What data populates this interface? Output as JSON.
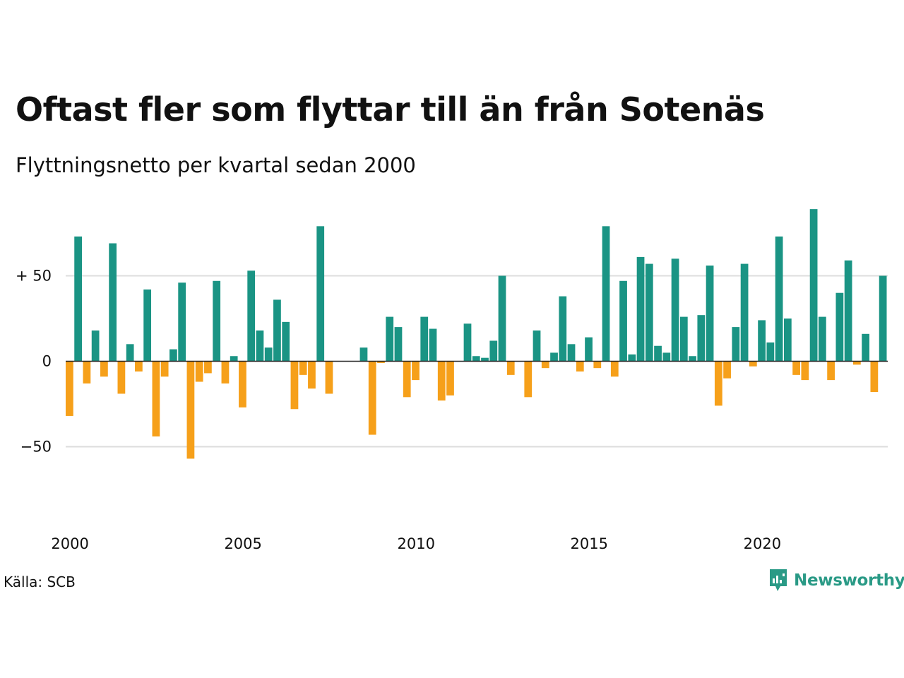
{
  "title": "Oftast fler som flyttar till än från Sotenäs",
  "subtitle": "Flyttningsnetto per kvartal sedan 2000",
  "source": "Källa: SCB",
  "logo_text": "Newsworthy",
  "colors": {
    "positive": "#1a9484",
    "negative": "#f6a01a",
    "grid": "#dddddd",
    "logo": "#2a9a86"
  },
  "chart_data": {
    "type": "bar",
    "title": "",
    "xlabel": "",
    "ylabel": "",
    "ylim": [
      -75,
      90
    ],
    "grid": true,
    "y_ticks": [
      {
        "value": 50,
        "label": "+ 50"
      },
      {
        "value": 0,
        "label": "0"
      },
      {
        "value": -50,
        "label": "−50"
      }
    ],
    "x_ticks": [
      {
        "label": "2000",
        "index": 0
      },
      {
        "label": "2005",
        "index": 20
      },
      {
        "label": "2010",
        "index": 40
      },
      {
        "label": "2015",
        "index": 60
      },
      {
        "label": "2020",
        "index": 80
      }
    ],
    "start_quarter": "2000 Q1",
    "values": [
      -32,
      73,
      -13,
      18,
      -9,
      69,
      -19,
      10,
      -6,
      42,
      -44,
      -9,
      7,
      46,
      -57,
      -12,
      -7,
      47,
      -13,
      3,
      -27,
      53,
      18,
      8,
      36,
      23,
      -28,
      -8,
      -16,
      79,
      -19,
      0,
      0,
      0,
      8,
      -43,
      -1,
      26,
      20,
      -21,
      -11,
      26,
      19,
      -23,
      -20,
      0,
      22,
      3,
      2,
      12,
      50,
      -8,
      0,
      -21,
      18,
      -4,
      5,
      38,
      10,
      -6,
      14,
      -4,
      79,
      -9,
      47,
      4,
      61,
      57,
      9,
      5,
      60,
      26,
      3,
      27,
      56,
      -26,
      -10,
      20,
      57,
      -3,
      24,
      11,
      73,
      25,
      -8,
      -11,
      89,
      26,
      -11,
      40,
      59,
      -2,
      16,
      -18,
      50
    ]
  }
}
